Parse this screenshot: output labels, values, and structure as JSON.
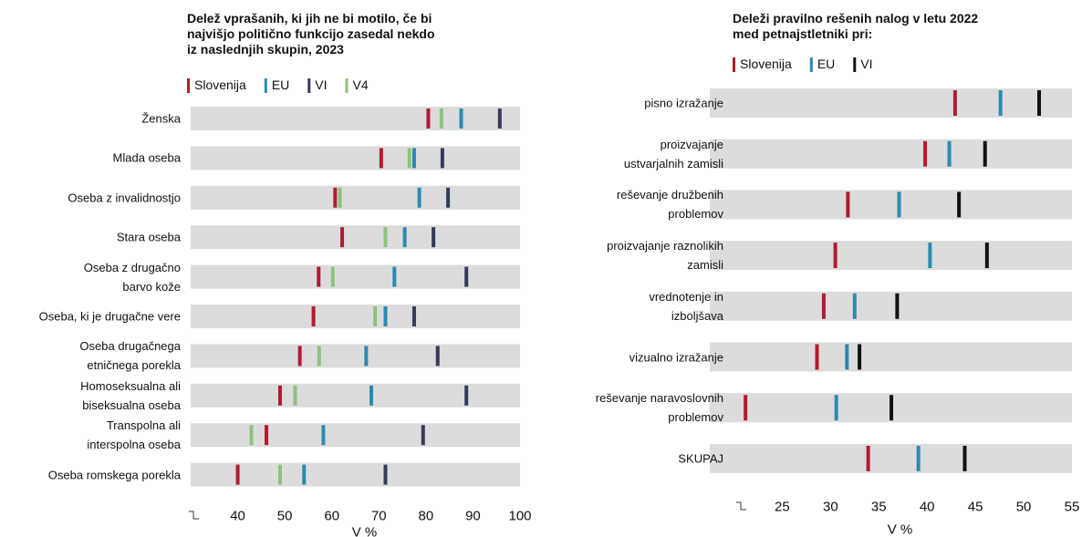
{
  "chart_data": [
    {
      "type": "dot",
      "title": "Delež vprašanih, ki jih ne bi motilo, če bi\nnajvišjo politično funkcijo zasedal nekdo\niz naslednjih skupin, 2023",
      "categories": [
        "Ženska",
        "Mlada oseba",
        "Oseba z invalidnostjo",
        "Stara oseba",
        "Oseba z drugačno\nbarvo kože",
        "Oseba, ki je drugačne vere",
        "Oseba drugačnega\netničnega porekla",
        "Homoseksualna ali\nbiseksualna oseba",
        "Transpolna ali\ninterspolna oseba",
        "Oseba romskega porekla"
      ],
      "series": [
        {
          "name": "Slovenija",
          "color": "#b01c2e",
          "values": [
            80.5,
            70.5,
            60.7,
            62.2,
            57.2,
            56.1,
            53.2,
            49,
            46.1,
            40
          ]
        },
        {
          "name": "EU",
          "color": "#2a8bb0",
          "values": [
            87.5,
            77.5,
            78.6,
            75.5,
            73.3,
            71.4,
            67.3,
            68.4,
            58.2,
            54.1
          ]
        },
        {
          "name": "VI",
          "color": "#363a5c",
          "values": [
            95.7,
            83.5,
            84.7,
            81.6,
            88.6,
            77.5,
            82.5,
            88.6,
            79.4,
            71.4
          ]
        },
        {
          "name": "V4",
          "color": "#8dc27a",
          "values": [
            83.3,
            76.5,
            61.7,
            71.4,
            60.2,
            69.2,
            57.3,
            52.2,
            42.9,
            49
          ]
        }
      ],
      "xlim": [
        30,
        100
      ],
      "xticks": [
        40,
        50,
        60,
        70,
        80,
        90,
        100
      ],
      "xlabel": "V %"
    },
    {
      "type": "dot",
      "title": "Deleži pravilno rešenih nalog v letu 2022\nmed petnajstletniki pri:",
      "categories": [
        "pisno izražanje",
        "proizvajanje\nustvarjalnih zamisli",
        "reševanje družbenih\nproblemov",
        "proizvajanje raznolikih\nzamisli",
        "vrednotenje in\nizboljšava",
        "vizualno izražanje",
        "reševanje naravoslovnih\nproblemov",
        "SKUPAJ"
      ],
      "series": [
        {
          "name": "Slovenija",
          "color": "#b01c2e",
          "values": [
            42.9,
            39.8,
            31.8,
            30.5,
            29.3,
            28.6,
            21.2,
            33.9
          ]
        },
        {
          "name": "EU",
          "color": "#2a8bb0",
          "values": [
            47.6,
            42.3,
            37.1,
            40.3,
            32.5,
            31.7,
            30.6,
            39.1
          ]
        },
        {
          "name": "VI",
          "color": "#111111",
          "values": [
            51.6,
            46,
            43.3,
            46.2,
            36.9,
            33,
            36.3,
            43.9
          ]
        }
      ],
      "xlim": [
        17.5,
        55
      ],
      "xticks": [
        25,
        30,
        35,
        40,
        45,
        50,
        55
      ],
      "xlabel": "V %"
    }
  ]
}
